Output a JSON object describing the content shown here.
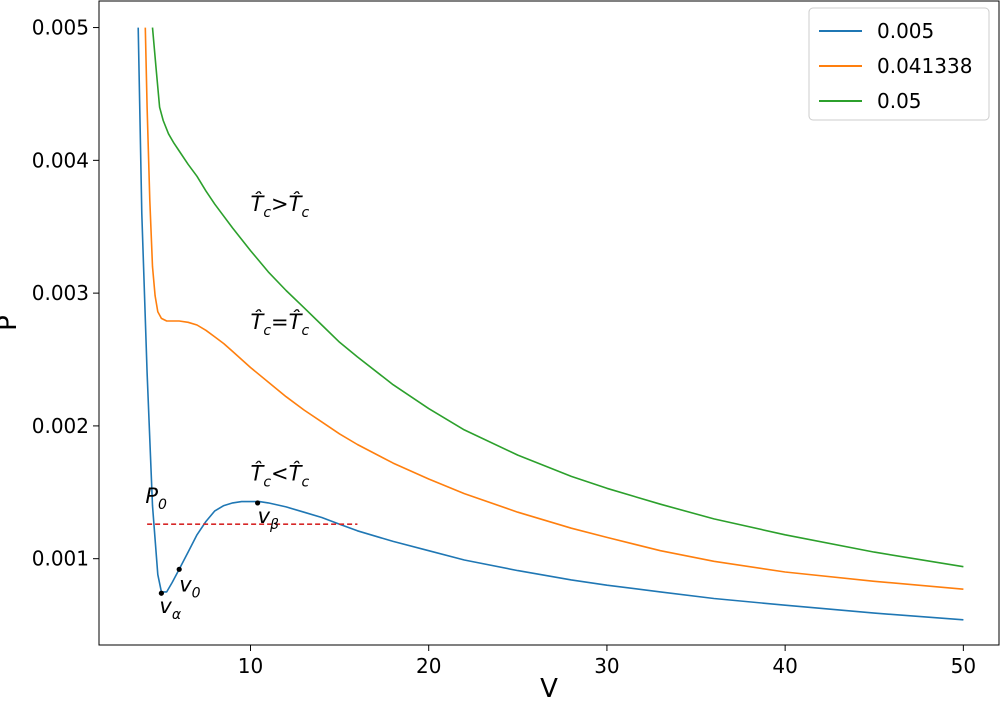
{
  "chart_data": {
    "type": "line",
    "xlabel": "V",
    "ylabel": "P",
    "xlim": [
      1.5,
      52
    ],
    "ylim": [
      0.00035,
      0.0052
    ],
    "xticks": [
      10,
      20,
      30,
      40,
      50
    ],
    "xtick_labels": [
      "10",
      "20",
      "30",
      "40",
      "50"
    ],
    "yticks": [
      0.001,
      0.002,
      0.003,
      0.004,
      0.005
    ],
    "ytick_labels": [
      "0.001",
      "0.002",
      "0.003",
      "0.004",
      "0.005"
    ],
    "grid": false,
    "legend_position": "top-right",
    "series": [
      {
        "name": "0.005",
        "color": "#1f77b4",
        "x": [
          3.7,
          3.9,
          4.2,
          4.5,
          4.8,
          5.0,
          5.3,
          5.6,
          6.0,
          6.5,
          7.0,
          7.5,
          8.0,
          8.5,
          9.0,
          9.5,
          10.0,
          10.5,
          11.0,
          12.0,
          13.0,
          14.0,
          15.0,
          16.0,
          18.0,
          20.0,
          22.0,
          25.0,
          28.0,
          30.0,
          33.0,
          36.0,
          40.0,
          45.0,
          50.0
        ],
        "y": [
          0.005,
          0.0036,
          0.0024,
          0.0014,
          0.00088,
          0.00075,
          0.00075,
          0.00082,
          0.00092,
          0.00105,
          0.00118,
          0.00128,
          0.00136,
          0.0014,
          0.00142,
          0.00143,
          0.00143,
          0.00143,
          0.00142,
          0.00139,
          0.00135,
          0.00131,
          0.00126,
          0.00121,
          0.00113,
          0.00106,
          0.00099,
          0.00091,
          0.00084,
          0.0008,
          0.00075,
          0.0007,
          0.00065,
          0.00059,
          0.00054
        ]
      },
      {
        "name": "0.041338",
        "color": "#ff7f0e",
        "x": [
          4.1,
          4.2,
          4.35,
          4.5,
          4.65,
          4.8,
          5.0,
          5.3,
          5.6,
          6.0,
          6.5,
          7.0,
          7.5,
          8.0,
          8.5,
          9.0,
          10.0,
          11.0,
          12.0,
          13.0,
          14.0,
          15.0,
          16.0,
          18.0,
          20.0,
          22.0,
          25.0,
          28.0,
          30.0,
          33.0,
          36.0,
          40.0,
          45.0,
          50.0
        ],
        "y": [
          0.005,
          0.0044,
          0.0037,
          0.0032,
          0.00298,
          0.00286,
          0.00281,
          0.00279,
          0.00279,
          0.00279,
          0.00278,
          0.00276,
          0.00272,
          0.00267,
          0.00262,
          0.00256,
          0.00244,
          0.00233,
          0.00222,
          0.00212,
          0.00203,
          0.00194,
          0.00186,
          0.00172,
          0.0016,
          0.00149,
          0.00135,
          0.00123,
          0.00116,
          0.00106,
          0.00098,
          0.0009,
          0.00083,
          0.00077
        ]
      },
      {
        "name": "0.05",
        "color": "#2ca02c",
        "x": [
          4.5,
          4.7,
          4.9,
          5.1,
          5.4,
          5.7,
          6.0,
          6.5,
          7.0,
          7.5,
          8.0,
          9.0,
          10.0,
          11.0,
          12.0,
          13.0,
          14.0,
          15.0,
          16.0,
          18.0,
          20.0,
          22.0,
          25.0,
          28.0,
          30.0,
          33.0,
          36.0,
          40.0,
          45.0,
          50.0
        ],
        "y": [
          0.005,
          0.0047,
          0.0044,
          0.0043,
          0.0042,
          0.00413,
          0.00407,
          0.00397,
          0.00388,
          0.00377,
          0.00367,
          0.00349,
          0.00332,
          0.00316,
          0.00302,
          0.00289,
          0.00276,
          0.00263,
          0.00252,
          0.00231,
          0.00213,
          0.00197,
          0.00178,
          0.00162,
          0.00153,
          0.00141,
          0.0013,
          0.00118,
          0.00105,
          0.00094
        ]
      }
    ],
    "maxwell_line": {
      "x": [
        4.2,
        16.0
      ],
      "y": [
        0.00126,
        0.00126
      ],
      "color": "#d62728",
      "style": "dashed"
    },
    "points": [
      {
        "x": 5.0,
        "y": 0.00074,
        "label_base": "v",
        "label_sub": "α",
        "dx": -2,
        "dy": 20
      },
      {
        "x": 6.0,
        "y": 0.00092,
        "label_base": "v",
        "label_sub": "0",
        "dx": 0,
        "dy": 22
      },
      {
        "x": 10.4,
        "y": 0.00142,
        "label_base": "v",
        "label_sub": "β",
        "dx": 0,
        "dy": 20
      }
    ],
    "annotations": [
      {
        "x": 4.1,
        "y": 0.00142,
        "base": "P",
        "sub": "0",
        "rel": ""
      },
      {
        "x": 10.0,
        "y": 0.00362,
        "base": "T̂",
        "sub": "c",
        "rel": ">"
      },
      {
        "x": 10.0,
        "y": 0.00273,
        "base": "T̂",
        "sub": "c",
        "rel": "="
      },
      {
        "x": 10.0,
        "y": 0.00159,
        "base": "T̂",
        "sub": "c",
        "rel": "<"
      }
    ]
  }
}
